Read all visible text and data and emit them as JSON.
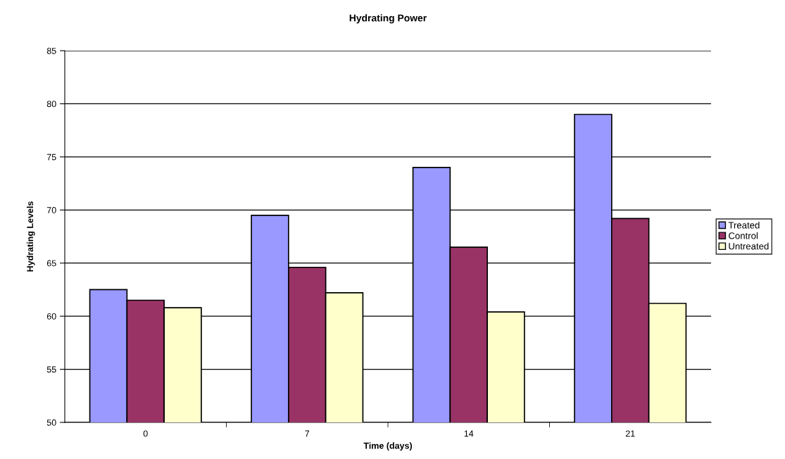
{
  "chart_data": {
    "type": "bar",
    "title": "Hydrating Power",
    "xlabel": "Time (days)",
    "ylabel": "Hydrating Levels",
    "categories": [
      "0",
      "7",
      "14",
      "21"
    ],
    "series": [
      {
        "name": "Treated",
        "color": "#9999ff",
        "values": [
          62.5,
          69.5,
          74.0,
          79.0
        ]
      },
      {
        "name": "Control",
        "color": "#993366",
        "values": [
          61.5,
          64.6,
          66.5,
          69.2
        ]
      },
      {
        "name": "Untreated",
        "color": "#ffffcc",
        "values": [
          60.8,
          62.2,
          60.4,
          61.2
        ]
      }
    ],
    "ylim": [
      50,
      85
    ],
    "yticks": [
      50,
      55,
      60,
      65,
      70,
      75,
      80,
      85
    ],
    "grid": "y",
    "legend": "right"
  }
}
